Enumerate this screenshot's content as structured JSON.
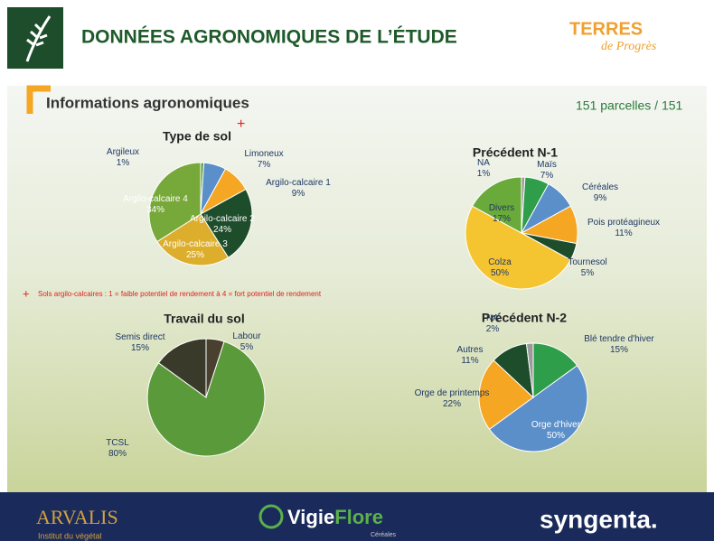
{
  "header": {
    "title": "DONNÉES AGRONOMIQUES DE L’ÉTUDE",
    "logo_main": "TERRES",
    "logo_sub": "de Progrès"
  },
  "section_title": "Informations agronomiques",
  "count": "151 parcelles / 151",
  "footnote": "Sols argilo-calcaires : 1 = faible potentiel de rendement  à 4 = fort potentiel de rendement",
  "footer": {
    "arvalis": "ARVALIS",
    "arvalis_sub": "Institut du végétal",
    "vigie": "Vigie",
    "flore": "Flore",
    "vigie_sub": "Céréales",
    "syngenta": "syngenta."
  },
  "chart_data": [
    {
      "type": "pie",
      "title": "Type de sol",
      "categories": [
        "Argileux",
        "Limoneux",
        "Argilo-calcaire 1",
        "Argilo-calcaire 2",
        "Argilo-calcaire 3",
        "Argilo-calcaire 4"
      ],
      "values": [
        1,
        7,
        9,
        24,
        25,
        34
      ],
      "value_labels": [
        "1%",
        "7%",
        "9%",
        "24%",
        "25%",
        "34%"
      ],
      "colors": [
        "#5aa040",
        "#5b8fc9",
        "#f5a623",
        "#1e4d2b",
        "#dcae2c",
        "#77a83a"
      ]
    },
    {
      "type": "pie",
      "title": "Précédent N-1",
      "categories": [
        "NA",
        "Maïs",
        "Céréales",
        "Pois protéagineux",
        "Tournesol",
        "Colza",
        "Divers"
      ],
      "values": [
        1,
        7,
        9,
        11,
        5,
        50,
        17
      ],
      "value_labels": [
        "1%",
        "7%",
        "9%",
        "11%",
        "5%",
        "50%",
        "17%"
      ],
      "colors": [
        "#9a9a9a",
        "#2e9e4a",
        "#5b8fc9",
        "#f5a623",
        "#1e4d2b",
        "#f5c431",
        "#6aaa3a"
      ]
    },
    {
      "type": "pie",
      "title": "Travail du sol",
      "categories": [
        "Labour",
        "TCSL",
        "Semis direct"
      ],
      "values": [
        5,
        80,
        15
      ],
      "value_labels": [
        "5%",
        "80%",
        "15%"
      ],
      "colors": [
        "#4a4030",
        "#5a9a3a",
        "#3a3a2a"
      ]
    },
    {
      "type": "pie",
      "title": "Précédent N-2",
      "categories": [
        "Blé tendre d'hiver",
        "Orge d'hiver",
        "Orge de printemps",
        "Autres",
        "NA"
      ],
      "values": [
        15,
        50,
        22,
        11,
        2
      ],
      "value_labels": [
        "15%",
        "50%",
        "22%",
        "11%",
        "2%"
      ],
      "colors": [
        "#2e9e4a",
        "#5b8fc9",
        "#f5a623",
        "#1e4d2b",
        "#9a9a9a"
      ]
    }
  ]
}
